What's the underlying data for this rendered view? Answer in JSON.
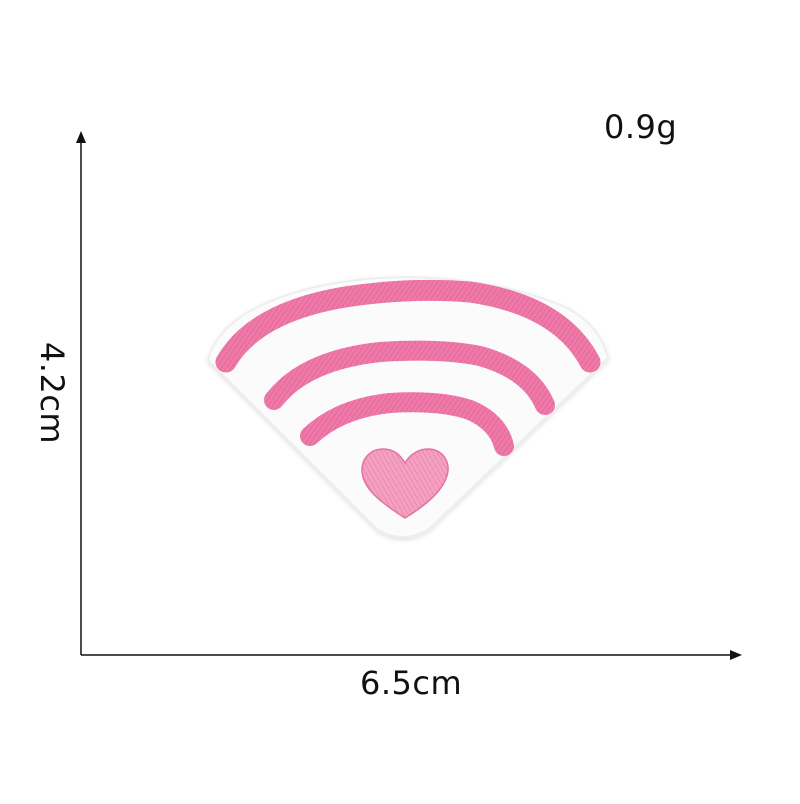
{
  "labels": {
    "weight": "0.9g",
    "height": "4.2cm",
    "width": "6.5cm"
  },
  "colors": {
    "felt": "#fbfbfb",
    "felt_edge": "#e8e8e8",
    "embroidery_pink": "#ef79a8",
    "embroidery_shadow": "#d95a8e",
    "heart_pink": "#f39bbd",
    "arrows": "#111111"
  },
  "product": {
    "subject": "wifi-signal-heart-embroidered-patch"
  }
}
